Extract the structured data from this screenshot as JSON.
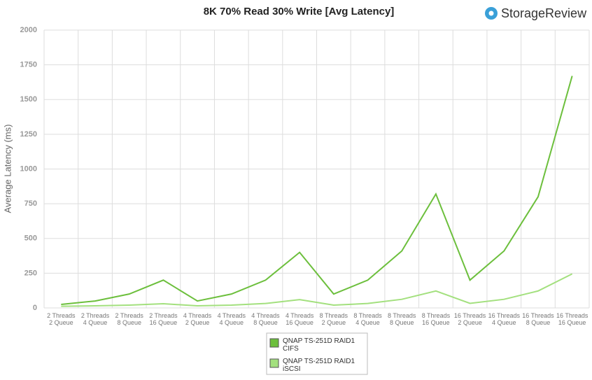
{
  "chart_data": {
    "type": "line",
    "title": "8K 70% Read 30% Write [Avg Latency]",
    "logo": "StorageReview",
    "y_label": "Average Latency  (ms)",
    "categories": [
      "2 Threads\n2 Queue",
      "2 Threads\n4 Queue",
      "2 Threads\n8 Queue",
      "2 Threads\n16 Queue",
      "4 Threads\n2 Queue",
      "4 Threads\n4 Queue",
      "4 Threads\n8 Queue",
      "4 Threads\n16 Queue",
      "8 Threads\n2 Queue",
      "8 Threads\n4 Queue",
      "8 Threads\n8 Queue",
      "8 Threads\n16 Queue",
      "16 Threads\n2 Queue",
      "16 Threads\n4 Queue",
      "16 Threads\n8 Queue",
      "16 Threads\n16 Queue"
    ],
    "series": [
      {
        "name": "QNAP TS-251D RAID1\nCIFS",
        "color": "#6cbf3c",
        "values": [
          25,
          50,
          100,
          200,
          50,
          100,
          200,
          400,
          100,
          200,
          410,
          820,
          200,
          410,
          800,
          1670
        ]
      },
      {
        "name": "QNAP TS-251D RAID1\niSCSI",
        "color": "#a3e07e",
        "values": [
          12,
          15,
          20,
          30,
          15,
          20,
          32,
          60,
          20,
          32,
          62,
          122,
          33,
          62,
          122,
          245
        ]
      }
    ],
    "ylim": [
      0,
      2000
    ],
    "yticks": [
      0,
      250,
      500,
      750,
      1000,
      1250,
      1500,
      1750,
      2000
    ],
    "grid": true
  }
}
